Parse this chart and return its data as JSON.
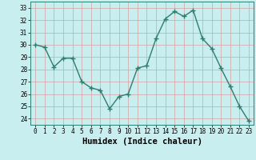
{
  "x": [
    0,
    1,
    2,
    3,
    4,
    5,
    6,
    7,
    8,
    9,
    10,
    11,
    12,
    13,
    14,
    15,
    16,
    17,
    18,
    19,
    20,
    21,
    22,
    23
  ],
  "y": [
    30.0,
    29.8,
    28.2,
    28.9,
    28.9,
    27.0,
    26.5,
    26.3,
    24.8,
    25.8,
    26.0,
    28.1,
    28.3,
    30.5,
    32.1,
    32.7,
    32.3,
    32.8,
    30.5,
    29.7,
    28.1,
    26.6,
    25.0,
    23.8
  ],
  "line_color": "#2e7d6e",
  "marker": "+",
  "marker_size": 5,
  "bg_color": "#c8eef0",
  "grid_color": "#d4a0a0",
  "xlabel": "Humidex (Indice chaleur)",
  "ylim": [
    23.5,
    33.5
  ],
  "xlim": [
    -0.5,
    23.5
  ],
  "yticks": [
    24,
    25,
    26,
    27,
    28,
    29,
    30,
    31,
    32,
    33
  ],
  "xticks": [
    0,
    1,
    2,
    3,
    4,
    5,
    6,
    7,
    8,
    9,
    10,
    11,
    12,
    13,
    14,
    15,
    16,
    17,
    18,
    19,
    20,
    21,
    22,
    23
  ],
  "tick_fontsize": 5.5,
  "xlabel_fontsize": 7.5,
  "line_width": 1.0
}
